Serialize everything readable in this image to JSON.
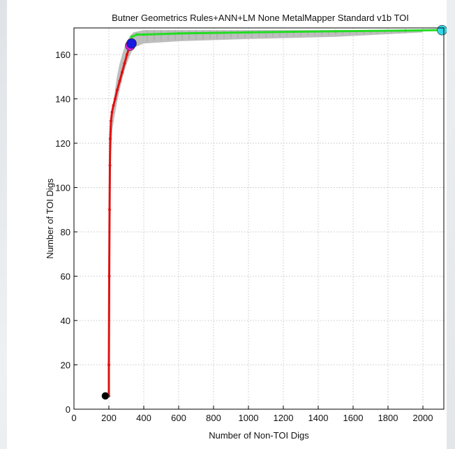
{
  "chart_data": {
    "type": "line",
    "title": "Butner Geometrics Rules+ANN+LM None MetalMapper Standard v1b TOI",
    "xlabel": "Number of Non-TOI Digs",
    "ylabel": "Number of TOI Digs",
    "xlim": [
      0,
      2120
    ],
    "ylim": [
      0,
      172
    ],
    "xticks": [
      0,
      200,
      400,
      600,
      800,
      1000,
      1200,
      1400,
      1600,
      1800,
      2000
    ],
    "yticks": [
      0,
      20,
      40,
      60,
      80,
      100,
      120,
      140,
      160
    ],
    "grid": true,
    "colors": {
      "red_segment": "#e01010",
      "green_segment": "#22dd22",
      "gray_band": "#a8a8a8",
      "start_marker": "#000000",
      "magenta_marker": "#e020e0",
      "blue_marker": "#1a1ae0",
      "cyan_marker": "#33d6e6"
    },
    "series": [
      {
        "color": "red",
        "x": [
          180,
          200,
          200,
          202,
          204,
          206,
          208,
          212,
          218,
          226,
          236,
          248,
          262,
          276,
          290,
          304,
          316,
          324
        ],
        "y": [
          6,
          6,
          20,
          60,
          90,
          110,
          122,
          130,
          134,
          137,
          140,
          144,
          148,
          152,
          156,
          160,
          163,
          166
        ]
      },
      {
        "color": "green",
        "x": [
          330,
          360,
          400,
          600,
          1000,
          1500,
          1900,
          2090,
          2110
        ],
        "y": [
          168,
          169,
          169,
          169.5,
          170,
          170.5,
          170.8,
          171,
          171
        ]
      },
      {
        "color": "gray-band-upper",
        "x": [
          200,
          204,
          210,
          220,
          232,
          246,
          262,
          280,
          298,
          318,
          340,
          400,
          600,
          1000,
          1500,
          2000
        ],
        "y": [
          40,
          100,
          124,
          134,
          142,
          150,
          156,
          161,
          165,
          168,
          170,
          171,
          171,
          171,
          171,
          171
        ]
      },
      {
        "color": "gray-band-lower",
        "x": [
          200,
          204,
          210,
          220,
          232,
          246,
          262,
          280,
          298,
          318,
          340,
          400,
          600,
          1000,
          1500,
          2000
        ],
        "y": [
          6,
          80,
          112,
          126,
          132,
          138,
          144,
          150,
          155,
          159,
          163,
          165,
          166,
          167,
          168,
          170
        ]
      }
    ],
    "markers": [
      {
        "color": "black",
        "x": 180,
        "y": 6
      },
      {
        "color": "magenta",
        "x": 322,
        "y": 164
      },
      {
        "color": "blue",
        "x": 330,
        "y": 165
      },
      {
        "color": "cyan",
        "x": 2110,
        "y": 171
      }
    ]
  }
}
